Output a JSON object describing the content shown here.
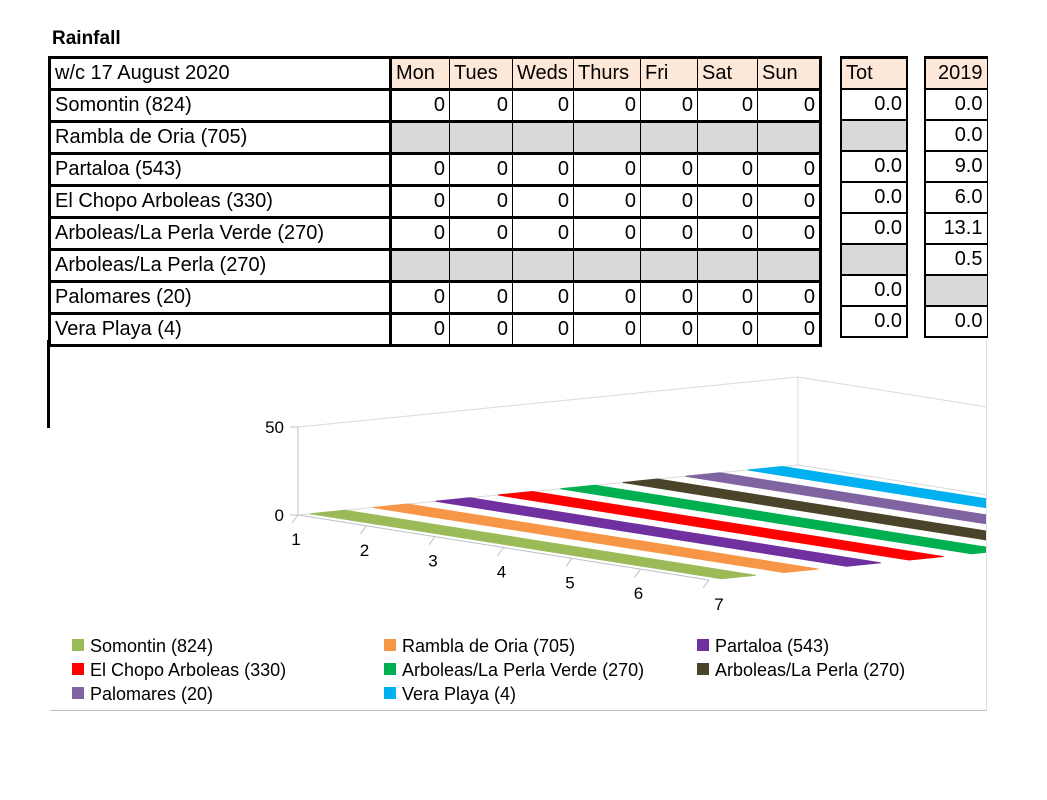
{
  "title": "Rainfall",
  "table": {
    "week_label": "w/c 17 August  2020",
    "days": [
      "Mon",
      "Tues",
      "Weds",
      "Thurs",
      "Fri",
      "Sat",
      "Sun"
    ],
    "total_label": "Tot",
    "prev_label": "2019",
    "rows": [
      {
        "name": "Somontin (824)",
        "values": [
          "0",
          "0",
          "0",
          "0",
          "0",
          "0",
          "0"
        ],
        "total": "0.0",
        "prev": "0.0"
      },
      {
        "name": "Rambla de Oria (705)",
        "values": [
          "",
          "",
          "",
          "",
          "",
          "",
          ""
        ],
        "total": "",
        "prev": "0.0"
      },
      {
        "name": "Partaloa (543)",
        "values": [
          "0",
          "0",
          "0",
          "0",
          "0",
          "0",
          "0"
        ],
        "total": "0.0",
        "prev": "9.0"
      },
      {
        "name": "El Chopo Arboleas (330)",
        "values": [
          "0",
          "0",
          "0",
          "0",
          "0",
          "0",
          "0"
        ],
        "total": "0.0",
        "prev": "6.0"
      },
      {
        "name": "Arboleas/La Perla Verde (270)",
        "values": [
          "0",
          "0",
          "0",
          "0",
          "0",
          "0",
          "0"
        ],
        "total": "0.0",
        "prev": "13.1"
      },
      {
        "name": "Arboleas/La Perla (270)",
        "values": [
          "",
          "",
          "",
          "",
          "",
          "",
          ""
        ],
        "total": "",
        "prev": "0.5"
      },
      {
        "name": "Palomares (20)",
        "values": [
          "0",
          "0",
          "0",
          "0",
          "0",
          "0",
          "0"
        ],
        "total": "0.0",
        "prev": ""
      },
      {
        "name": "Vera Playa (4)",
        "values": [
          "0",
          "0",
          "0",
          "0",
          "0",
          "0",
          "0"
        ],
        "total": "0.0",
        "prev": "0.0"
      }
    ]
  },
  "chart_data": {
    "type": "area",
    "subtype": "3d",
    "x": [
      1,
      2,
      3,
      4,
      5,
      6,
      7
    ],
    "x_tick_labels": [
      "1",
      "2",
      "3",
      "4",
      "5",
      "6",
      "7"
    ],
    "y_tick_labels": [
      "0",
      "50"
    ],
    "ylim": [
      0,
      50
    ],
    "legend_position": "bottom",
    "series": [
      {
        "name": "Somontin (824)",
        "color": "#9bbb59",
        "values": [
          0,
          0,
          0,
          0,
          0,
          0,
          0
        ]
      },
      {
        "name": "Rambla de Oria (705)",
        "color": "#f79646",
        "values": [
          0,
          0,
          0,
          0,
          0,
          0,
          0
        ]
      },
      {
        "name": "Partaloa (543)",
        "color": "#7030a0",
        "values": [
          0,
          0,
          0,
          0,
          0,
          0,
          0
        ]
      },
      {
        "name": "El Chopo Arboleas (330)",
        "color": "#ff0000",
        "values": [
          0,
          0,
          0,
          0,
          0,
          0,
          0
        ]
      },
      {
        "name": "Arboleas/La Perla Verde (270)",
        "color": "#00b050",
        "values": [
          0,
          0,
          0,
          0,
          0,
          0,
          0
        ]
      },
      {
        "name": "Arboleas/La Perla (270)",
        "color": "#4a452a",
        "values": [
          0,
          0,
          0,
          0,
          0,
          0,
          0
        ]
      },
      {
        "name": "Palomares (20)",
        "color": "#8064a2",
        "values": [
          0,
          0,
          0,
          0,
          0,
          0,
          0
        ]
      },
      {
        "name": "Vera Playa (4)",
        "color": "#00b0f0",
        "values": [
          0,
          0,
          0,
          0,
          0,
          0,
          0
        ]
      }
    ]
  }
}
